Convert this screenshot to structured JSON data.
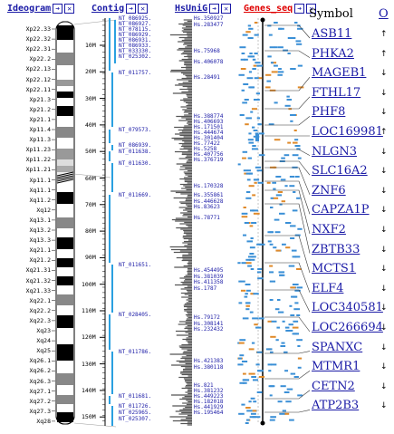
{
  "headers": {
    "ideogram": "Ideogram",
    "contig": "Contig",
    "hsunig": "HsUniG",
    "genes_seq": "Genes_seq",
    "symbol": "Symbol",
    "o_link": "O"
  },
  "header_icons": [
    "arrow-right-icon",
    "close-icon"
  ],
  "bands": [
    "Xp22.33",
    "Xp22.32",
    "Xp22.31",
    "Xp22.2",
    "Xp22.13",
    "Xp22.12",
    "Xp22.11",
    "Xp21.3",
    "Xp21.2",
    "Xp21.1",
    "Xp11.4",
    "Xp11.3",
    "Xp11.23",
    "Xp11.22",
    "Xp11.21",
    "Xp11.1",
    "Xq11.1",
    "Xq11.2",
    "Xq12",
    "Xq13.1",
    "Xq13.2",
    "Xq13.3",
    "Xq21.1",
    "Xq21.2",
    "Xq21.31",
    "Xq21.32",
    "Xq21.33",
    "Xq22.1",
    "Xq22.2",
    "Xq22.3",
    "Xq23",
    "Xq24",
    "Xq25",
    "Xq26.1",
    "Xq26.2",
    "Xq26.3",
    "Xq27.1",
    "Xq27.2",
    "Xq27.3",
    "Xq28"
  ],
  "mb_ticks": [
    "10M",
    "20M",
    "30M",
    "40M",
    "50M",
    "60M",
    "70M",
    "80M",
    "90M",
    "100M",
    "110M",
    "120M",
    "130M",
    "140M",
    "150M"
  ],
  "contigs": [
    "NT_086925.",
    "NT_086927.",
    "NT_078115.",
    "NT_086929.",
    "NT_086931.",
    "NT_086933.",
    "NT_033330.",
    "NT_025302.",
    "NT_011757.",
    "NT_079573.",
    "NT_086939.",
    "NT_011638.",
    "NT_011630.",
    "NT_011669.",
    "NT_011651.",
    "NT_028405.",
    "NT_011786.",
    "NT_011681.",
    "NT_011726.",
    "NT_025965.",
    "NT_025307."
  ],
  "unigenes": [
    "Hs.350927",
    "Hs.283477",
    "Hs.75968",
    "Hs.406078",
    "Hs.28491",
    "Hs.388774",
    "Hs.406693",
    "Hs.171501",
    "Hs.444674",
    "Hs.301404",
    "Hs.77422",
    "Hs.5258",
    "Hs.407756",
    "Hs.376719",
    "Hs.170328",
    "Hs.355861",
    "Hs.446628",
    "Hs.83623",
    "Hs.78771",
    "Hs.454495",
    "Hs.381039",
    "Hs.411358",
    "Hs.1787",
    "Hs.79172",
    "Hs.308141",
    "Hs.232432",
    "Hs.421383",
    "Hs.380118",
    "Hs.821",
    "Hs.381232",
    "Hs.449223",
    "Hs.182018",
    "Hs.441929",
    "Hs.195464"
  ],
  "genes": [
    {
      "symbol": "ASB11",
      "dir": "↑"
    },
    {
      "symbol": "PHKA2",
      "dir": "↑"
    },
    {
      "symbol": "MAGEB1",
      "dir": "↓"
    },
    {
      "symbol": "FTHL17",
      "dir": "↓"
    },
    {
      "symbol": "PHF8",
      "dir": "↓"
    },
    {
      "symbol": "LOC169981",
      "dir": "↑"
    },
    {
      "symbol": "NLGN3",
      "dir": "↓"
    },
    {
      "symbol": "SLC16A2",
      "dir": "↓"
    },
    {
      "symbol": "ZNF6",
      "dir": "↓"
    },
    {
      "symbol": "CAPZA1P",
      "dir": "↓"
    },
    {
      "symbol": "NXF2",
      "dir": "↓"
    },
    {
      "symbol": "ZBTB33",
      "dir": "↓"
    },
    {
      "symbol": "MCTS1",
      "dir": "↓"
    },
    {
      "symbol": "ELF4",
      "dir": "↓"
    },
    {
      "symbol": "LOC340581",
      "dir": "↓"
    },
    {
      "symbol": "LOC266694",
      "dir": "↓"
    },
    {
      "symbol": "SPANXC",
      "dir": "↓"
    },
    {
      "symbol": "MTMR1",
      "dir": "↓"
    },
    {
      "symbol": "CETN2",
      "dir": "↓"
    },
    {
      "symbol": "ATP2B3",
      "dir": "↓"
    }
  ],
  "colors": {
    "link": "#1a1aa6",
    "contig": "#2aa0e0",
    "genes_header": "#e00000",
    "gene_box": "#3a8fd6",
    "gene_orange": "#e08a2a"
  }
}
